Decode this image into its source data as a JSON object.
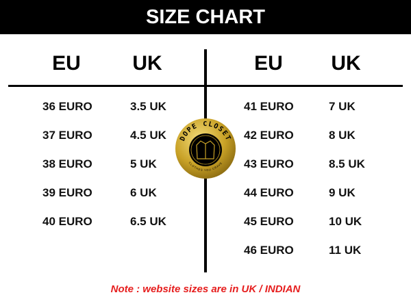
{
  "title": "SIZE CHART",
  "left": {
    "eu_header": "EU",
    "uk_header": "UK",
    "rows": [
      [
        "36 EURO",
        "3.5 UK"
      ],
      [
        "37 EURO",
        "4.5 UK"
      ],
      [
        "38 EURO",
        "5 UK"
      ],
      [
        "39 EURO",
        "6 UK"
      ],
      [
        "40 EURO",
        "6.5 UK"
      ]
    ]
  },
  "right": {
    "eu_header": "EU",
    "uk_header": "UK",
    "rows": [
      [
        "41 EURO",
        "7 UK"
      ],
      [
        "42 EURO",
        "8 UK"
      ],
      [
        "43 EURO",
        "8.5 UK"
      ],
      [
        "44 EURO",
        "9 UK"
      ],
      [
        "45 EURO",
        "10 UK"
      ],
      [
        "46 EURO",
        "11 UK"
      ]
    ]
  },
  "logo": {
    "brand": "DOPE CLOSET",
    "tagline": "CLOTHES YOU CRAVE",
    "icon": "shirt-icon"
  },
  "note": "Note : website sizes are in UK / INDIAN",
  "colors": {
    "header_bg": "#000000",
    "note": "#e61e1e",
    "logo_gold": "#c9a227"
  }
}
